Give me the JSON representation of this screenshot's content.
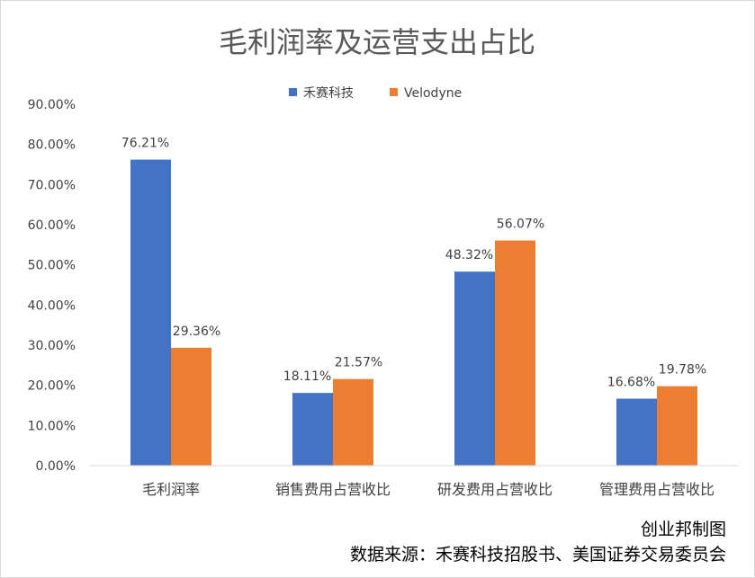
{
  "chart_data": {
    "type": "bar",
    "title": "毛利润率及运营支出占比",
    "categories": [
      "毛利润率",
      "销售费用占营收比",
      "研发费用占营收比",
      "管理费用占营收比"
    ],
    "series": [
      {
        "name": "禾赛科技",
        "color": "#4472c4",
        "values": [
          76.21,
          18.11,
          48.32,
          16.68
        ],
        "labels": [
          "76.21%",
          "18.11%",
          "48.32%",
          "16.68%"
        ]
      },
      {
        "name": "Velodyne",
        "color": "#ed7d31",
        "values": [
          29.36,
          21.57,
          56.07,
          19.78
        ],
        "labels": [
          "29.36%",
          "21.57%",
          "56.07%",
          "19.78%"
        ]
      }
    ],
    "yticks": [
      0,
      10,
      20,
      30,
      40,
      50,
      60,
      70,
      80,
      90
    ],
    "ytick_labels": [
      "0.00%",
      "10.00%",
      "20.00%",
      "30.00%",
      "40.00%",
      "50.00%",
      "60.00%",
      "70.00%",
      "80.00%",
      "90.00%"
    ],
    "ylim": [
      0,
      90
    ],
    "legend_position": "top",
    "grid": false,
    "xlabel": "",
    "ylabel": ""
  },
  "footer": {
    "credit": "创业邦制图",
    "source": "数据来源：禾赛科技招股书、美国证券交易委员会"
  }
}
